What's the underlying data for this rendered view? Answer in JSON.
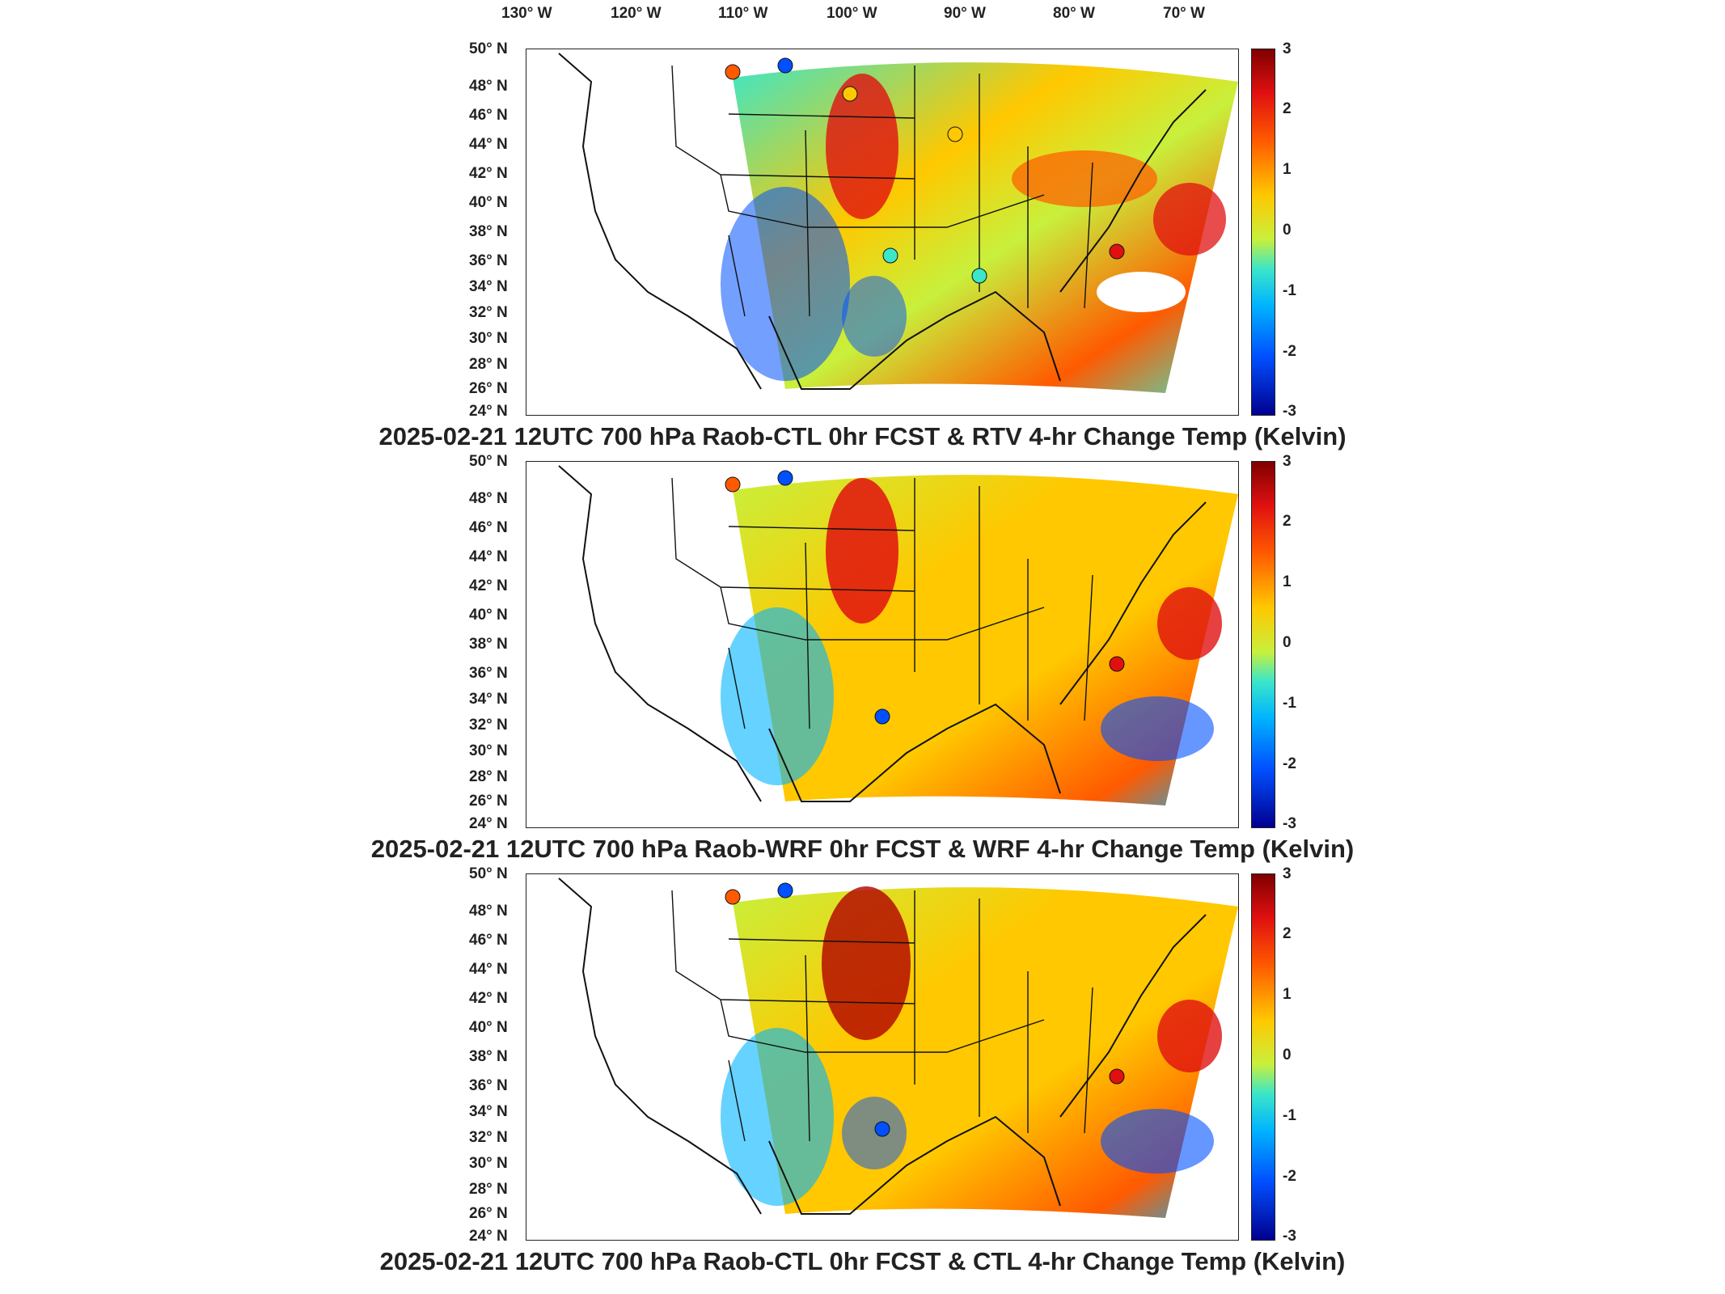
{
  "longitude_labels": [
    "130° W",
    "120° W",
    "110° W",
    "100° W",
    "90° W",
    "80° W",
    "70° W"
  ],
  "latitude_labels": [
    "50° N",
    "48° N",
    "46° N",
    "44° N",
    "42° N",
    "40° N",
    "38° N",
    "36° N",
    "34° N",
    "32° N",
    "30° N",
    "28° N",
    "26° N",
    "24° N"
  ],
  "colorbar_ticks": [
    "3",
    "2",
    "1",
    "0",
    "-1",
    "-2",
    "-3"
  ],
  "colors": {
    "max": "#7f0000",
    "high": "#ff5a00",
    "mid": "#c8f03c",
    "low": "#00b4ff",
    "min": "#00008f",
    "land_outline": "#111111"
  },
  "panels": [
    {
      "title": "2025-02-21 12UTC 700 hPa Raob-CTL 0hr FCST & RTV 4-hr Change Temp (Kelvin)"
    },
    {
      "title": "2025-02-21 12UTC 700 hPa Raob-WRF 0hr FCST & WRF 4-hr Change Temp (Kelvin)"
    },
    {
      "title": "2025-02-21 12UTC 700 hPa Raob-CTL 0hr FCST & CTL 4-hr Change Temp (Kelvin)"
    }
  ],
  "colorbar_range": [
    -3,
    3
  ]
}
